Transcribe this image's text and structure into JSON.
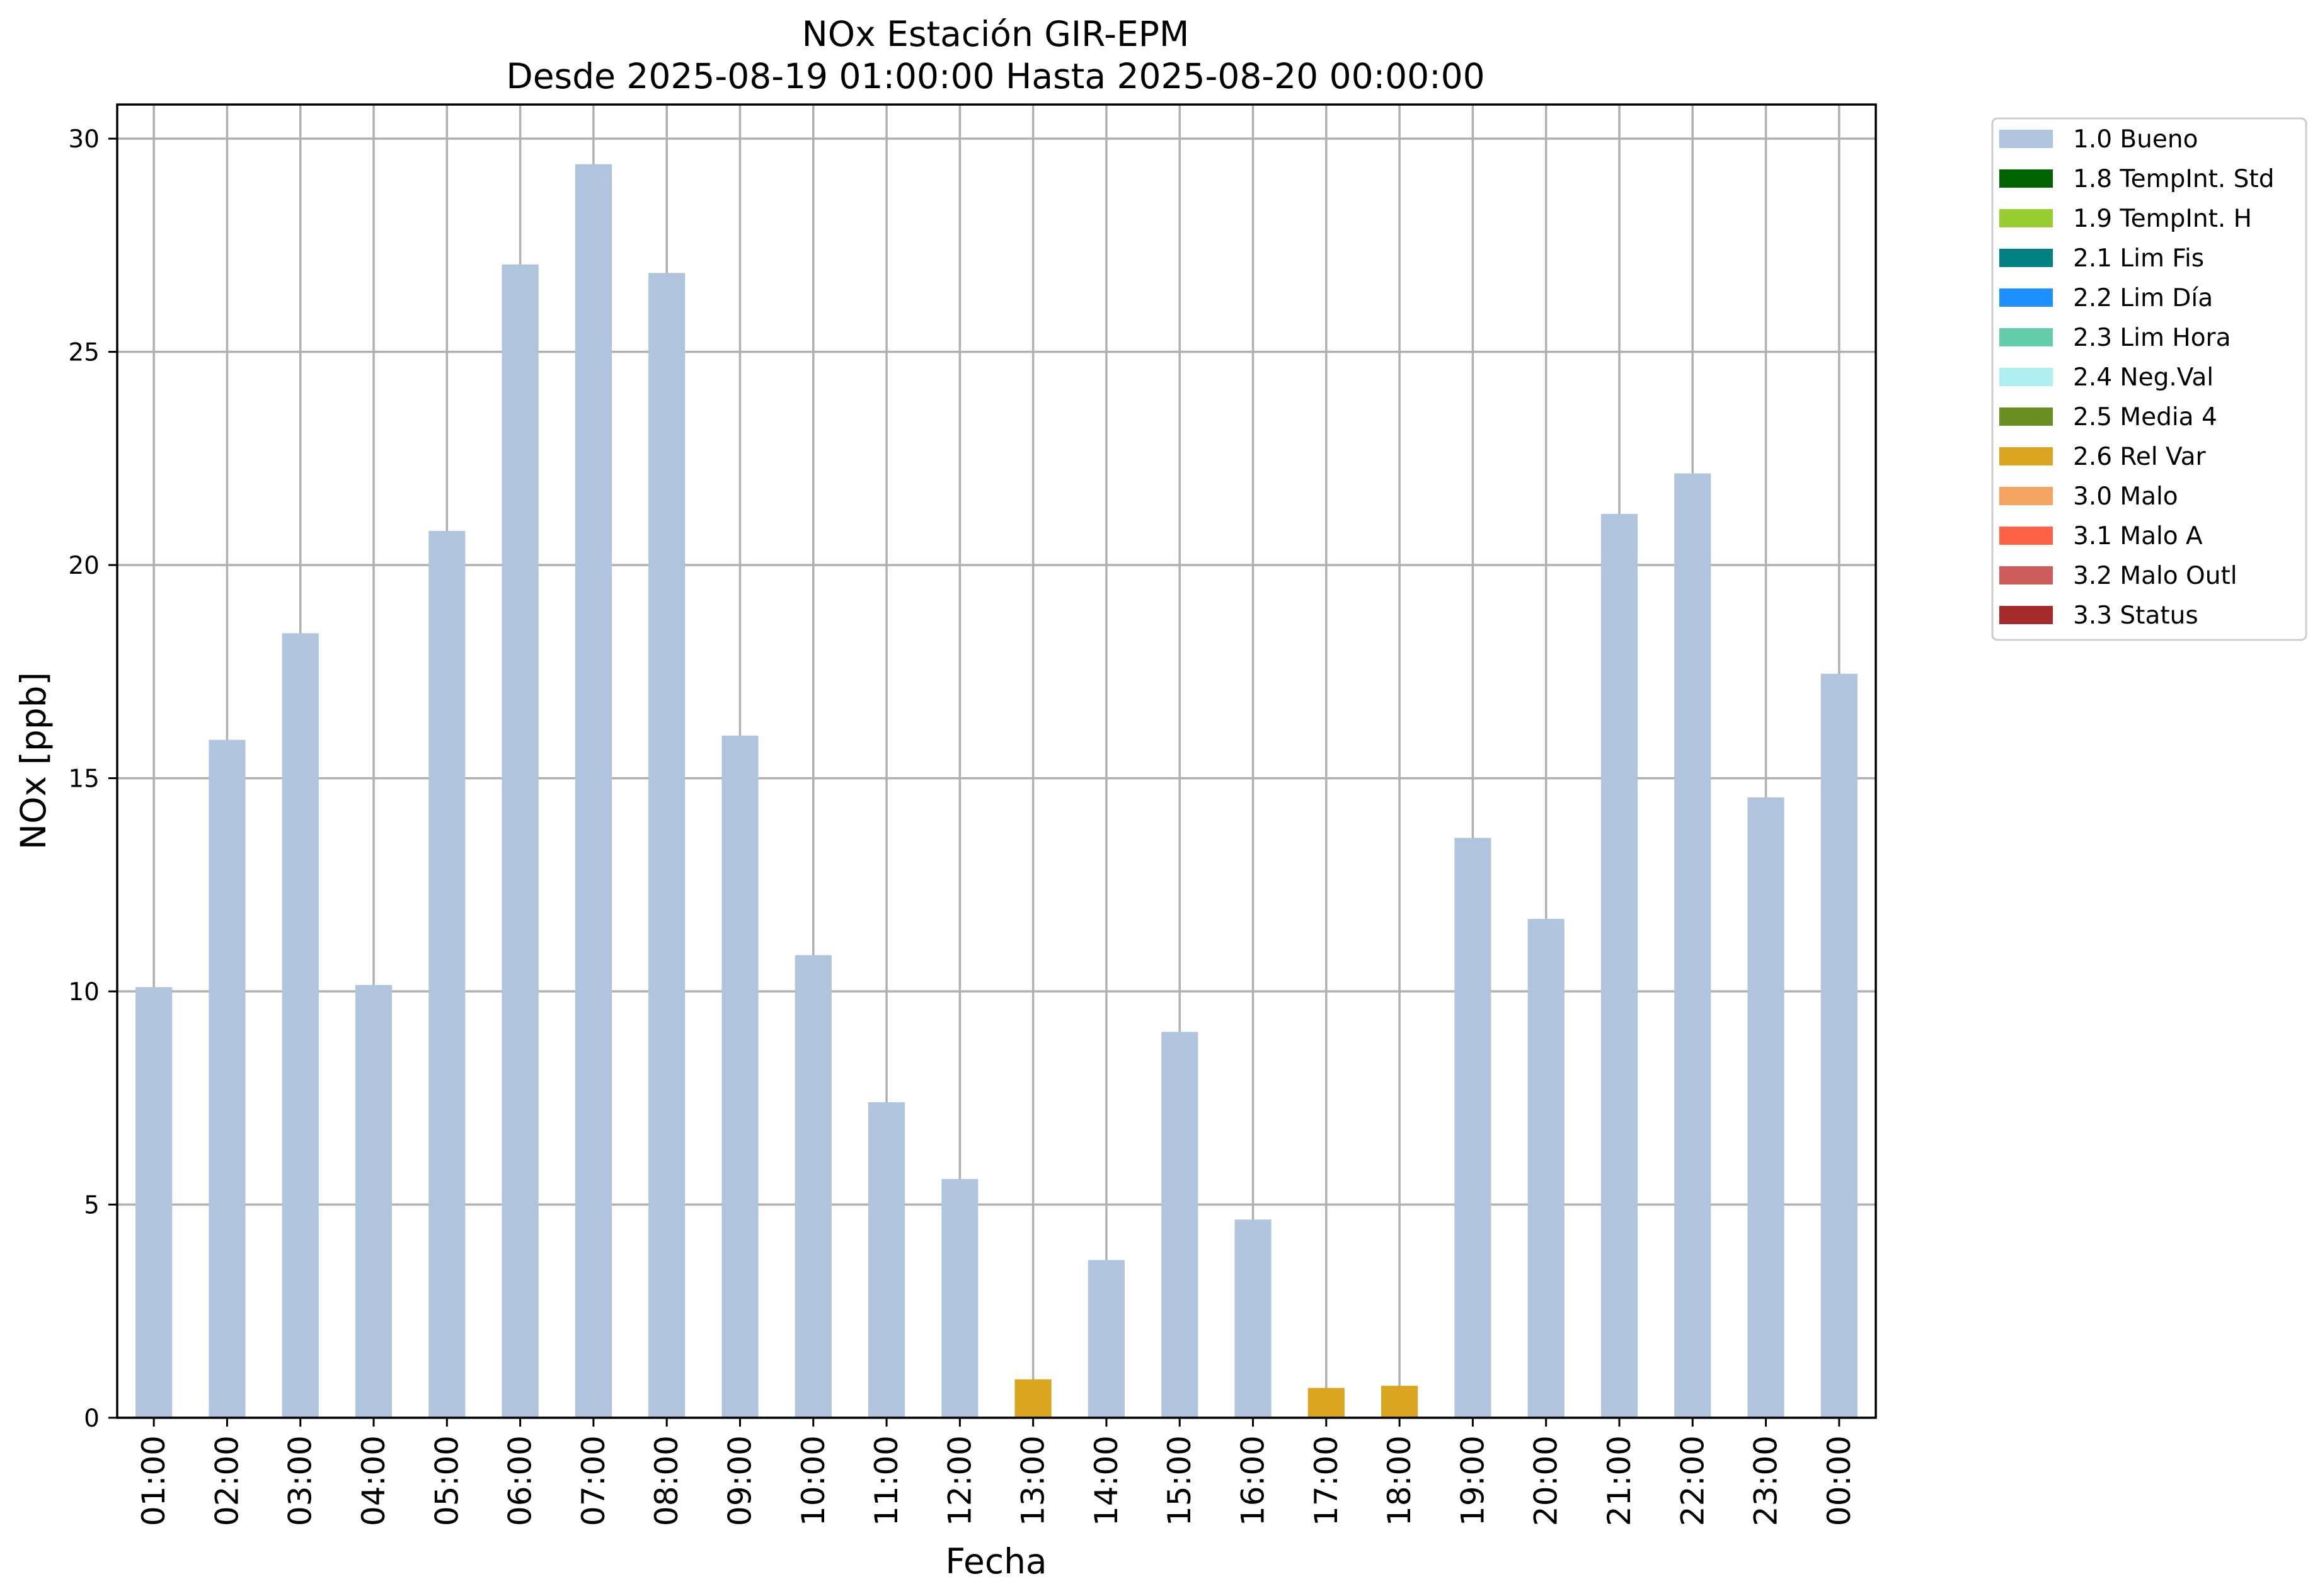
{
  "chart_data": {
    "type": "bar",
    "title": [
      "NOx Estación GIR-EPM",
      "Desde 2025-08-19 01:00:00 Hasta 2025-08-20 00:00:00"
    ],
    "xlabel": "Fecha",
    "ylabel": "NOx [ppb]",
    "ylim": [
      0,
      30.8
    ],
    "yticks": [
      0,
      5,
      10,
      15,
      20,
      25,
      30
    ],
    "grid": true,
    "legend_position": "outside-top-right",
    "categories": [
      "01:00",
      "02:00",
      "03:00",
      "04:00",
      "05:00",
      "06:00",
      "07:00",
      "08:00",
      "09:00",
      "10:00",
      "11:00",
      "12:00",
      "13:00",
      "14:00",
      "15:00",
      "16:00",
      "17:00",
      "18:00",
      "19:00",
      "20:00",
      "21:00",
      "22:00",
      "23:00",
      "00:00"
    ],
    "values": [
      10.1,
      15.9,
      18.4,
      10.15,
      20.8,
      27.05,
      29.4,
      26.85,
      16.0,
      10.85,
      7.4,
      5.6,
      0.9,
      3.7,
      9.05,
      4.65,
      0.7,
      0.75,
      13.6,
      11.7,
      21.2,
      22.15,
      14.55,
      17.45
    ],
    "flags": [
      "1.0 Bueno",
      "1.0 Bueno",
      "1.0 Bueno",
      "1.0 Bueno",
      "1.0 Bueno",
      "1.0 Bueno",
      "1.0 Bueno",
      "1.0 Bueno",
      "1.0 Bueno",
      "1.0 Bueno",
      "1.0 Bueno",
      "1.0 Bueno",
      "2.6 Rel Var",
      "1.0 Bueno",
      "1.0 Bueno",
      "1.0 Bueno",
      "2.6 Rel Var",
      "2.6 Rel Var",
      "1.0 Bueno",
      "1.0 Bueno",
      "1.0 Bueno",
      "1.0 Bueno",
      "1.0 Bueno",
      "1.0 Bueno"
    ],
    "legend": [
      {
        "label": "1.0 Bueno",
        "color": "#b0c4de"
      },
      {
        "label": "1.8 TempInt. Std",
        "color": "#006400"
      },
      {
        "label": "1.9 TempInt. H",
        "color": "#9acd32"
      },
      {
        "label": "2.1 Lim Fis",
        "color": "#008080"
      },
      {
        "label": "2.2 Lim Día",
        "color": "#1e90ff"
      },
      {
        "label": "2.3 Lim Hora",
        "color": "#66cdaa"
      },
      {
        "label": "2.4 Neg.Val",
        "color": "#afeeee"
      },
      {
        "label": "2.5 Media 4",
        "color": "#6b8e23"
      },
      {
        "label": "2.6 Rel Var",
        "color": "#daa520"
      },
      {
        "label": "3.0 Malo",
        "color": "#f4a460"
      },
      {
        "label": "3.1 Malo A",
        "color": "#ff6347"
      },
      {
        "label": "3.2 Malo Outl",
        "color": "#cd5c5c"
      },
      {
        "label": "3.3 Status",
        "color": "#a52a2a"
      }
    ]
  }
}
